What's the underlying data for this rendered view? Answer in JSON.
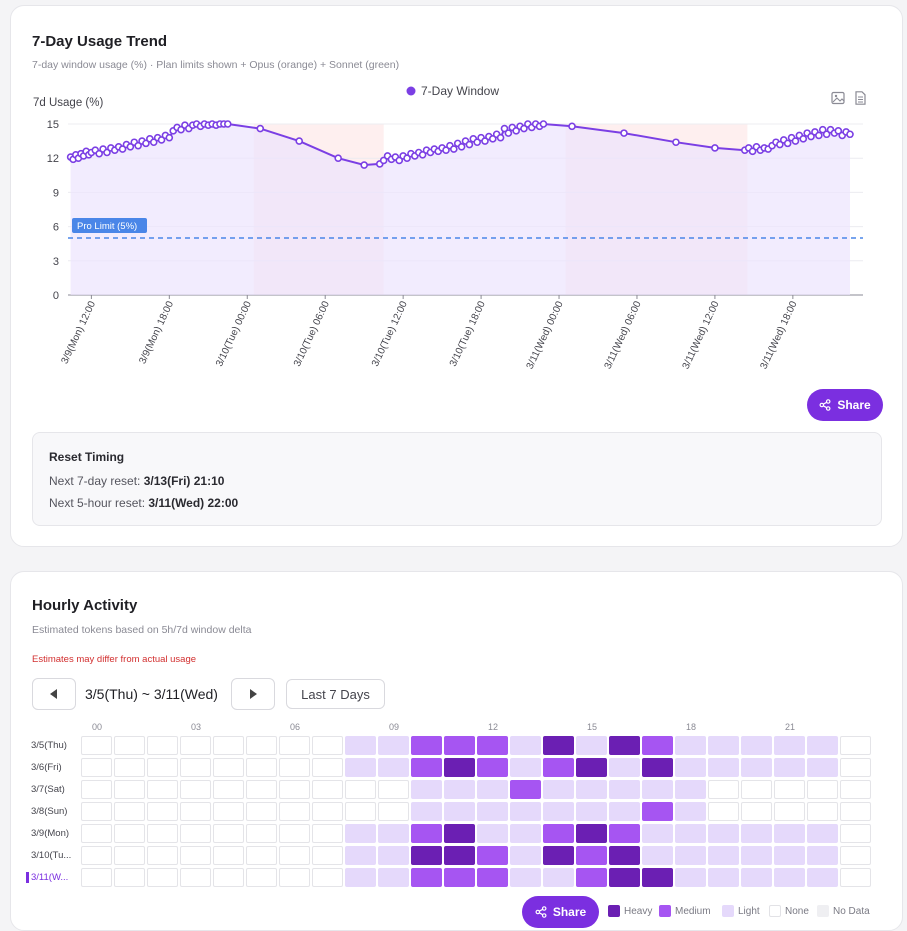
{
  "trend": {
    "title": "7-Day Usage Trend",
    "subtitle": "7-day window usage (%) · Plan limits shown + Opus (orange) + Sonnet (green)",
    "share_label": "Share",
    "icons": [
      "image-icon",
      "csv-icon"
    ],
    "reset": {
      "title": "Reset Timing",
      "line1_label": "Next 7-day reset: ",
      "line1_value": "3/13(Fri) 21:10",
      "line2_label": "Next 5-hour reset: ",
      "line2_value": "3/11(Wed) 22:00"
    }
  },
  "chart_data": {
    "type": "line",
    "title": "",
    "ylabel": "7d Usage (%)",
    "xlabel": "",
    "ylim": [
      0,
      15
    ],
    "yticks": [
      0,
      3,
      6,
      9,
      12,
      15
    ],
    "grid": true,
    "legend_position": "top-center",
    "x_tick_labels": [
      "3/9(Mon) 12:00",
      "3/9(Mon) 18:00",
      "3/10(Tue) 00:00",
      "3/10(Tue) 06:00",
      "3/10(Tue) 12:00",
      "3/10(Tue) 18:00",
      "3/11(Wed) 00:00",
      "3/11(Wed) 06:00",
      "3/11(Wed) 12:00",
      "3/11(Wed) 18:00"
    ],
    "xlim_hours": [
      -1.8,
      59.4
    ],
    "shaded_ranges_hours": [
      [
        12.5,
        22.5
      ],
      [
        36.5,
        50.5
      ]
    ],
    "limit_line": {
      "label": "Pro Limit (5%)",
      "value": 5
    },
    "series": [
      {
        "name": "7-Day Window",
        "color": "#7b3fe4",
        "points": [
          [
            -1.6,
            12.1
          ],
          [
            -1.4,
            11.9
          ],
          [
            -1.2,
            12.3
          ],
          [
            -1.0,
            12.0
          ],
          [
            -0.8,
            12.4
          ],
          [
            -0.6,
            12.2
          ],
          [
            -0.4,
            12.6
          ],
          [
            -0.2,
            12.3
          ],
          [
            0.0,
            12.5
          ],
          [
            0.3,
            12.7
          ],
          [
            0.6,
            12.4
          ],
          [
            0.9,
            12.8
          ],
          [
            1.2,
            12.5
          ],
          [
            1.5,
            12.9
          ],
          [
            1.8,
            12.7
          ],
          [
            2.1,
            13.0
          ],
          [
            2.4,
            12.8
          ],
          [
            2.7,
            13.2
          ],
          [
            3.0,
            13.0
          ],
          [
            3.3,
            13.4
          ],
          [
            3.6,
            13.1
          ],
          [
            3.9,
            13.5
          ],
          [
            4.2,
            13.3
          ],
          [
            4.5,
            13.7
          ],
          [
            4.8,
            13.4
          ],
          [
            5.1,
            13.8
          ],
          [
            5.4,
            13.6
          ],
          [
            5.7,
            14.0
          ],
          [
            6.0,
            13.8
          ],
          [
            6.3,
            14.4
          ],
          [
            6.6,
            14.7
          ],
          [
            6.9,
            14.5
          ],
          [
            7.2,
            14.9
          ],
          [
            7.5,
            14.6
          ],
          [
            7.8,
            14.9
          ],
          [
            8.1,
            15.0
          ],
          [
            8.4,
            14.8
          ],
          [
            8.7,
            15.0
          ],
          [
            9.0,
            14.9
          ],
          [
            9.3,
            15.0
          ],
          [
            9.6,
            14.9
          ],
          [
            9.9,
            15.0
          ],
          [
            10.2,
            15.0
          ],
          [
            10.5,
            15.0
          ],
          [
            13.0,
            14.6
          ],
          [
            16.0,
            13.5
          ],
          [
            19.0,
            12.0
          ],
          [
            21.0,
            11.4
          ],
          [
            22.2,
            11.5
          ],
          [
            22.5,
            11.8
          ],
          [
            22.8,
            12.2
          ],
          [
            23.1,
            11.9
          ],
          [
            23.4,
            12.1
          ],
          [
            23.7,
            11.8
          ],
          [
            24.0,
            12.2
          ],
          [
            24.3,
            12.0
          ],
          [
            24.6,
            12.4
          ],
          [
            24.9,
            12.2
          ],
          [
            25.2,
            12.5
          ],
          [
            25.5,
            12.3
          ],
          [
            25.8,
            12.7
          ],
          [
            26.1,
            12.5
          ],
          [
            26.4,
            12.8
          ],
          [
            26.7,
            12.6
          ],
          [
            27.0,
            12.9
          ],
          [
            27.3,
            12.7
          ],
          [
            27.6,
            13.1
          ],
          [
            27.9,
            12.8
          ],
          [
            28.2,
            13.3
          ],
          [
            28.5,
            13.0
          ],
          [
            28.8,
            13.5
          ],
          [
            29.1,
            13.2
          ],
          [
            29.4,
            13.7
          ],
          [
            29.7,
            13.4
          ],
          [
            30.0,
            13.8
          ],
          [
            30.3,
            13.5
          ],
          [
            30.6,
            13.9
          ],
          [
            30.9,
            13.7
          ],
          [
            31.2,
            14.1
          ],
          [
            31.5,
            13.8
          ],
          [
            31.8,
            14.6
          ],
          [
            32.1,
            14.2
          ],
          [
            32.4,
            14.7
          ],
          [
            32.7,
            14.4
          ],
          [
            33.0,
            14.8
          ],
          [
            33.3,
            14.6
          ],
          [
            33.6,
            15.0
          ],
          [
            33.9,
            14.7
          ],
          [
            34.2,
            15.0
          ],
          [
            34.5,
            14.8
          ],
          [
            34.8,
            15.0
          ],
          [
            37.0,
            14.8
          ],
          [
            41.0,
            14.2
          ],
          [
            45.0,
            13.4
          ],
          [
            48.0,
            12.9
          ],
          [
            50.3,
            12.7
          ],
          [
            50.6,
            12.9
          ],
          [
            50.9,
            12.6
          ],
          [
            51.2,
            13.0
          ],
          [
            51.5,
            12.7
          ],
          [
            51.8,
            12.9
          ],
          [
            52.1,
            12.8
          ],
          [
            52.4,
            13.1
          ],
          [
            52.7,
            13.4
          ],
          [
            53.0,
            13.2
          ],
          [
            53.3,
            13.6
          ],
          [
            53.6,
            13.3
          ],
          [
            53.9,
            13.8
          ],
          [
            54.2,
            13.5
          ],
          [
            54.5,
            14.0
          ],
          [
            54.8,
            13.7
          ],
          [
            55.1,
            14.2
          ],
          [
            55.4,
            13.9
          ],
          [
            55.7,
            14.3
          ],
          [
            56.0,
            14.0
          ],
          [
            56.3,
            14.5
          ],
          [
            56.6,
            14.1
          ],
          [
            56.9,
            14.5
          ],
          [
            57.2,
            14.2
          ],
          [
            57.5,
            14.4
          ],
          [
            57.8,
            14.0
          ],
          [
            58.1,
            14.3
          ],
          [
            58.4,
            14.1
          ]
        ]
      }
    ]
  },
  "hourly": {
    "title": "Hourly Activity",
    "subtitle": "Estimated tokens based on 5h/7d window delta",
    "warning": "Estimates may differ from actual usage",
    "range_label": "3/5(Thu) ~ 3/11(Wed)",
    "last_button": "Last 7 Days",
    "share_label": "Share",
    "hour_labels": [
      "00",
      "03",
      "06",
      "09",
      "12",
      "15",
      "18",
      "21"
    ],
    "days": [
      {
        "label": "3/5(Thu)",
        "levels": [
          0,
          0,
          0,
          0,
          0,
          0,
          0,
          0,
          1,
          1,
          2,
          2,
          2,
          1,
          3,
          1,
          3,
          2,
          1,
          1,
          1,
          1,
          1,
          0
        ]
      },
      {
        "label": "3/6(Fri)",
        "levels": [
          0,
          0,
          0,
          0,
          0,
          0,
          0,
          0,
          1,
          1,
          2,
          3,
          2,
          1,
          2,
          3,
          1,
          3,
          1,
          1,
          1,
          1,
          1,
          0
        ]
      },
      {
        "label": "3/7(Sat)",
        "levels": [
          0,
          0,
          0,
          0,
          0,
          0,
          0,
          0,
          0,
          0,
          1,
          1,
          1,
          2,
          1,
          1,
          1,
          1,
          1,
          0,
          0,
          0,
          0,
          0
        ]
      },
      {
        "label": "3/8(Sun)",
        "levels": [
          0,
          0,
          0,
          0,
          0,
          0,
          0,
          0,
          0,
          0,
          1,
          1,
          1,
          1,
          1,
          1,
          1,
          2,
          1,
          0,
          0,
          0,
          0,
          0
        ]
      },
      {
        "label": "3/9(Mon)",
        "levels": [
          0,
          0,
          0,
          0,
          0,
          0,
          0,
          0,
          1,
          1,
          2,
          3,
          1,
          1,
          2,
          3,
          2,
          1,
          1,
          1,
          1,
          1,
          1,
          0
        ]
      },
      {
        "label": "3/10(Tu...",
        "levels": [
          0,
          0,
          0,
          0,
          0,
          0,
          0,
          0,
          1,
          1,
          3,
          3,
          2,
          1,
          3,
          2,
          3,
          1,
          1,
          1,
          1,
          1,
          1,
          0
        ]
      },
      {
        "label": "3/11(W...",
        "levels": [
          0,
          0,
          0,
          0,
          0,
          0,
          0,
          0,
          1,
          1,
          2,
          2,
          2,
          1,
          1,
          2,
          3,
          3,
          1,
          1,
          1,
          1,
          1,
          0
        ]
      }
    ],
    "active_day": 6,
    "legend": [
      "Heavy",
      "Medium",
      "Light",
      "None",
      "No Data"
    ],
    "colors": {
      "heavy": "#6b1fb3",
      "medium": "#a655f2",
      "light": "#e5d9fb",
      "none": "#ffffff",
      "nodata": "#efeff2"
    }
  }
}
